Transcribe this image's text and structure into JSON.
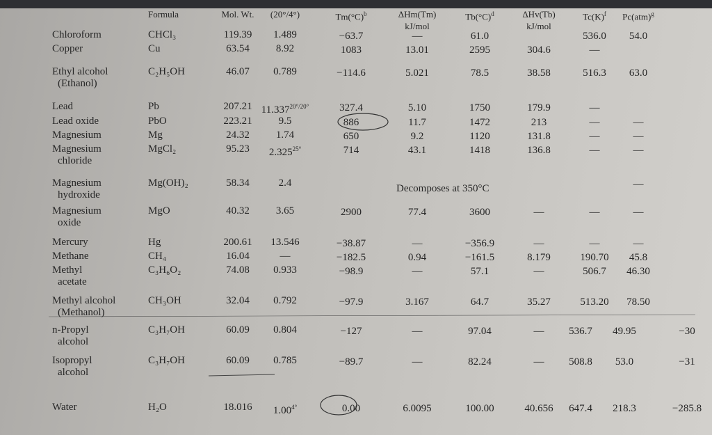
{
  "table": {
    "headers": [
      "Formula",
      "Mol. Wt.",
      "(20°/4°)",
      {
        "text": "Tm(°C)",
        "sup": "b"
      },
      [
        "ΔHm(Tm)",
        "kJ/mol"
      ],
      {
        "text": "Tb(°C)",
        "sup": "d"
      },
      [
        "ΔHv(Tb)",
        "kJ/mol"
      ],
      {
        "text": "Tc(K)",
        "sup": "f"
      },
      {
        "text": "Pc(atm)",
        "sup": "g"
      }
    ],
    "rows": [
      [
        [
          "Chloroform"
        ],
        "CHCl₃",
        "119.39",
        "1.489",
        "−63.7",
        "—",
        "61.0",
        null,
        "536.0",
        "54.0",
        null
      ],
      [
        [
          "Copper"
        ],
        "Cu",
        "63.54",
        "8.92",
        "1083",
        "13.01",
        "2595",
        "304.6",
        "—",
        null,
        null
      ],
      [
        [
          "Ethyl alcohol",
          "(Ethanol)"
        ],
        "C₂H₅OH",
        "46.07",
        "0.789",
        "−114.6",
        "5.021",
        "78.5",
        "38.58",
        "516.3",
        "63.0",
        null
      ],
      [
        [
          "Lead"
        ],
        "Pb",
        "207.21",
        {
          "text": "11.337",
          "sup": "20°/20°"
        },
        "327.4",
        "5.10",
        "1750",
        "179.9",
        "—",
        null,
        null
      ],
      [
        [
          "Lead oxide"
        ],
        "PbO",
        "223.21",
        "9.5",
        "886",
        "11.7",
        "1472",
        "213",
        "—",
        "—",
        null
      ],
      [
        [
          "Magnesium"
        ],
        "Mg",
        "24.32",
        "1.74",
        "650",
        "9.2",
        "1120",
        "131.8",
        "—",
        "—",
        null
      ],
      [
        [
          "Magnesium",
          "chloride"
        ],
        "MgCl₂",
        "95.23",
        {
          "text": "2.325",
          "sup": "25°"
        },
        "714",
        "43.1",
        "1418",
        "136.8",
        "—",
        "—",
        null
      ],
      [
        [
          "Magnesium",
          "hydroxide"
        ],
        "Mg(OH)₂",
        "58.34",
        "2.4",
        null,
        "Decomposes at 350°C",
        null,
        null,
        null,
        "—",
        null
      ],
      [
        [
          "Magnesium",
          "oxide"
        ],
        "MgO",
        "40.32",
        "3.65",
        "2900",
        "77.4",
        "3600",
        "—",
        "—",
        "—",
        null
      ],
      [
        [
          "Mercury"
        ],
        "Hg",
        "200.61",
        "13.546",
        "−38.87",
        "—",
        "−356.9",
        "—",
        "—",
        "—",
        null
      ],
      [
        [
          "Methane"
        ],
        "CH₄",
        "16.04",
        "—",
        "−182.5",
        "0.94",
        "−161.5",
        "8.179",
        "190.70",
        "45.8",
        null
      ],
      [
        [
          "Methyl",
          "acetate"
        ],
        "C₃H₆O₂",
        "74.08",
        "0.933",
        "−98.9",
        "—",
        "57.1",
        "—",
        "506.7",
        "46.30",
        null
      ],
      [
        [
          "Methyl alcohol",
          "(Methanol)"
        ],
        "CH₃OH",
        "32.04",
        "0.792",
        "−97.9",
        "3.167",
        "64.7",
        "35.27",
        "513.20",
        "78.50",
        null
      ],
      [
        [
          "n-Propyl",
          "alcohol"
        ],
        "C₃H₇OH",
        "60.09",
        "0.804",
        "−127",
        "—",
        "97.04",
        "—",
        "536.7",
        "49.95",
        "−30"
      ],
      [
        [
          "Isopropyl",
          "alcohol"
        ],
        "C₃H₇OH",
        "60.09",
        "0.785",
        "−89.7",
        "—",
        "82.24",
        "—",
        "508.8",
        "53.0",
        "−31"
      ],
      [
        [
          "Water"
        ],
        "H₂O",
        "18.016",
        {
          "text": "1.00",
          "sup": "4°"
        },
        "0.00",
        "6.0095",
        "100.00",
        "40.656",
        "647.4",
        "218.3",
        "−285.8"
      ]
    ]
  }
}
